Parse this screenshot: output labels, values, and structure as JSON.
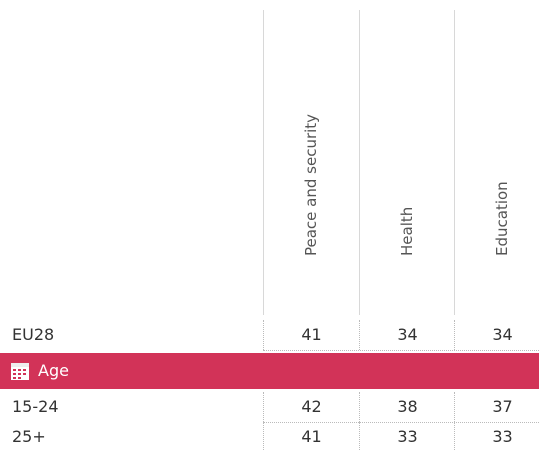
{
  "table": {
    "columns": [
      "Peace and security",
      "Health",
      "Education"
    ],
    "rows": [
      {
        "label": "EU28",
        "values": [
          41,
          34,
          34
        ]
      }
    ],
    "sections": [
      {
        "title": "Age",
        "rows": [
          {
            "label": "15-24",
            "values": [
              42,
              38,
              37
            ]
          },
          {
            "label": "25+",
            "values": [
              41,
              33,
              33
            ]
          }
        ]
      }
    ]
  }
}
